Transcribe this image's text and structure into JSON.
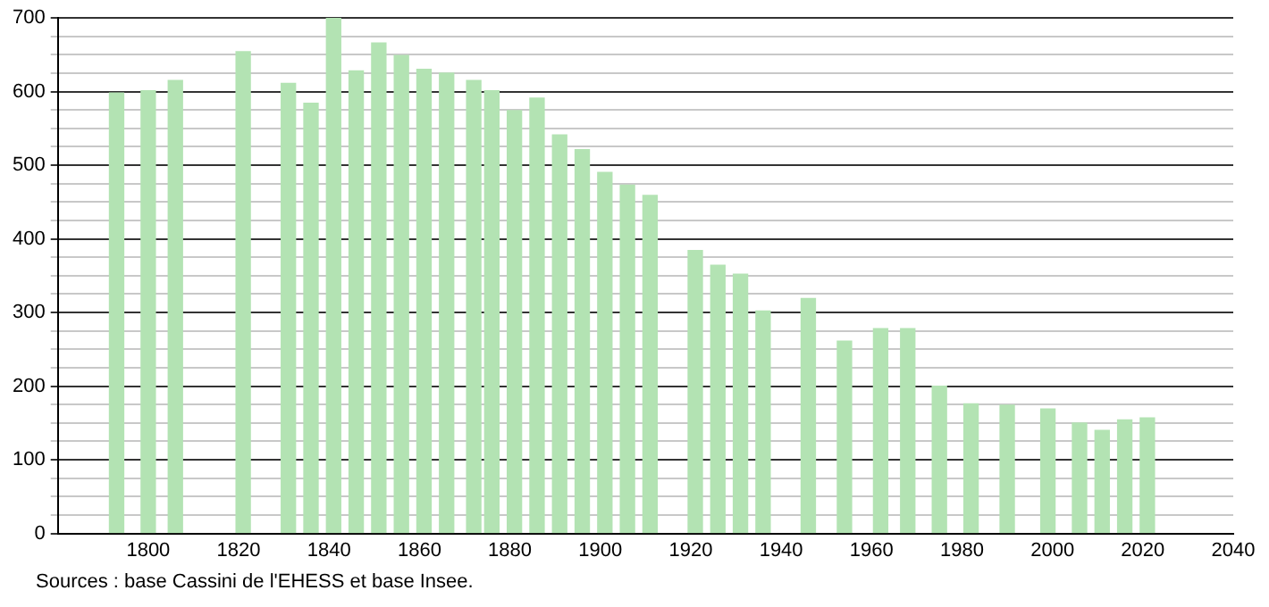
{
  "chart_data": {
    "type": "bar",
    "x": [
      1793,
      1800,
      1806,
      1821,
      1831,
      1836,
      1841,
      1846,
      1851,
      1856,
      1861,
      1866,
      1872,
      1876,
      1881,
      1886,
      1891,
      1896,
      1901,
      1906,
      1911,
      1921,
      1926,
      1931,
      1936,
      1946,
      1954,
      1962,
      1968,
      1975,
      1982,
      1990,
      1999,
      2006,
      2011,
      2016,
      2021
    ],
    "values": [
      598,
      601,
      615,
      654,
      611,
      584,
      700,
      628,
      666,
      649,
      630,
      625,
      615,
      601,
      574,
      591,
      541,
      521,
      490,
      473,
      459,
      384,
      364,
      352,
      302,
      319,
      261,
      278,
      278,
      200,
      176,
      174,
      169,
      150,
      140,
      154,
      157
    ],
    "color": "#b3e3b3",
    "xlim": [
      1780,
      2040
    ],
    "xticks": [
      1800,
      1820,
      1840,
      1860,
      1880,
      1900,
      1920,
      1940,
      1960,
      1980,
      2000,
      2020,
      2040
    ],
    "ylim": [
      0,
      700
    ],
    "yticks": [
      0,
      {
        "value": 25,
        "label": null
      },
      {
        "value": 50,
        "label": null
      },
      {
        "value": 75,
        "label": null
      },
      100,
      {
        "value": 125,
        "label": null
      },
      {
        "value": 150,
        "label": null
      },
      {
        "value": 175,
        "label": null
      },
      200,
      {
        "value": 225,
        "label": null
      },
      {
        "value": 250,
        "label": null
      },
      {
        "value": 275,
        "label": null
      },
      300,
      {
        "value": 325,
        "label": null
      },
      {
        "value": 350,
        "label": null
      },
      {
        "value": 375,
        "label": null
      },
      400,
      {
        "value": 425,
        "label": null
      },
      {
        "value": 450,
        "label": null
      },
      {
        "value": 475,
        "label": null
      },
      500,
      {
        "value": 525,
        "label": null
      },
      {
        "value": 550,
        "label": null
      },
      {
        "value": 575,
        "label": null
      },
      600,
      {
        "value": 625,
        "label": null
      },
      {
        "value": 650,
        "label": null
      },
      {
        "value": 675,
        "label": null
      },
      700
    ],
    "grid": "y",
    "annotations": [
      "Sources : base Cassini de l'EHESS et base Insee."
    ]
  }
}
